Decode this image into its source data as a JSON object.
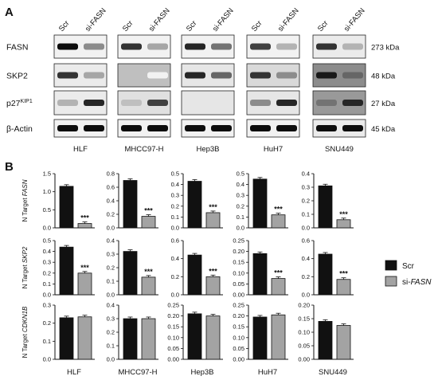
{
  "panel_a": {
    "letter": "A",
    "column_labels": [
      "Scr",
      "si-FASN"
    ],
    "proteins": [
      {
        "name": "FASN",
        "superscript": "",
        "kda": "273 kDa",
        "bands": [
          [
            0.95,
            0.45
          ],
          [
            0.8,
            0.35
          ],
          [
            0.85,
            0.55
          ],
          [
            0.75,
            0.3
          ],
          [
            0.8,
            0.3
          ]
        ],
        "bg": [
          0.05,
          0.05,
          0.05,
          0.05,
          0.08
        ]
      },
      {
        "name": "SKP2",
        "superscript": "",
        "kda": "48 kDa",
        "bands": [
          [
            0.8,
            0.35
          ],
          [
            0.25,
            0.05
          ],
          [
            0.85,
            0.6
          ],
          [
            0.8,
            0.45
          ],
          [
            0.9,
            0.6
          ]
        ],
        "bg": [
          0.08,
          0.25,
          0.1,
          0.15,
          0.45
        ]
      },
      {
        "name": "p27",
        "superscript": "KIP1",
        "kda": "27 kDa",
        "bands": [
          [
            0.3,
            0.85
          ],
          [
            0.25,
            0.75
          ],
          [
            0.1,
            0.1
          ],
          [
            0.45,
            0.85
          ],
          [
            0.55,
            0.85
          ]
        ],
        "bg": [
          0.08,
          0.12,
          0.1,
          0.1,
          0.4
        ]
      },
      {
        "name": "β-Actin",
        "superscript": "",
        "kda": "45 kDa",
        "bands": [
          [
            0.95,
            0.95
          ],
          [
            0.95,
            0.95
          ],
          [
            0.95,
            0.95
          ],
          [
            0.95,
            0.95
          ],
          [
            0.95,
            0.95
          ]
        ],
        "bg": [
          0.05,
          0.05,
          0.05,
          0.05,
          0.08
        ]
      }
    ]
  },
  "cell_lines": [
    "HLF",
    "MHCC97-H",
    "Hep3B",
    "HuH7",
    "SNU449"
  ],
  "panel_b": {
    "letter": "B",
    "significance": "***",
    "legend": [
      {
        "label": "Scr",
        "italic": "",
        "color": "#111111"
      },
      {
        "label": "si-",
        "italic": "FASN",
        "color": "#a3a3a3"
      }
    ]
  },
  "chart_data": {
    "type": "bar",
    "categories": [
      "Scr",
      "si-FASN"
    ],
    "rows": [
      {
        "ylabel_prefix": "N Target ",
        "ylabel_gene": "FASN",
        "charts": [
          {
            "cell_line": "HLF",
            "ylim": [
              0,
              1.5
            ],
            "ticks": [
              "0.0",
              "0.5",
              "1.0",
              "1.5"
            ],
            "tick_values": [
              0,
              0.5,
              1.0,
              1.5
            ],
            "values": [
              1.15,
              0.12
            ],
            "sig": [
              false,
              true
            ]
          },
          {
            "cell_line": "MHCC97-H",
            "ylim": [
              0,
              0.8
            ],
            "ticks": [
              "0.0",
              "0.2",
              "0.4",
              "0.6",
              "0.8"
            ],
            "tick_values": [
              0,
              0.2,
              0.4,
              0.6,
              0.8
            ],
            "values": [
              0.7,
              0.17
            ],
            "sig": [
              false,
              true
            ]
          },
          {
            "cell_line": "Hep3B",
            "ylim": [
              0,
              0.5
            ],
            "ticks": [
              "0.0",
              "0.1",
              "0.2",
              "0.3",
              "0.4",
              "0.5"
            ],
            "tick_values": [
              0,
              0.1,
              0.2,
              0.3,
              0.4,
              0.5
            ],
            "values": [
              0.43,
              0.14
            ],
            "sig": [
              false,
              true
            ]
          },
          {
            "cell_line": "HuH7",
            "ylim": [
              0,
              0.5
            ],
            "ticks": [
              "0.0",
              "0.1",
              "0.2",
              "0.3",
              "0.4",
              "0.5"
            ],
            "tick_values": [
              0,
              0.1,
              0.2,
              0.3,
              0.4,
              0.5
            ],
            "values": [
              0.45,
              0.12
            ],
            "sig": [
              false,
              true
            ]
          },
          {
            "cell_line": "SNU449",
            "ylim": [
              0,
              0.4
            ],
            "ticks": [
              "0.0",
              "0.1",
              "0.2",
              "0.3",
              "0.4"
            ],
            "tick_values": [
              0,
              0.1,
              0.2,
              0.3,
              0.4
            ],
            "values": [
              0.31,
              0.06
            ],
            "sig": [
              false,
              true
            ]
          }
        ]
      },
      {
        "ylabel_prefix": "N Target ",
        "ylabel_gene": "SKP2",
        "charts": [
          {
            "cell_line": "HLF",
            "ylim": [
              0,
              0.5
            ],
            "ticks": [
              "0.0",
              "0.1",
              "0.2",
              "0.3",
              "0.4",
              "0.5"
            ],
            "tick_values": [
              0,
              0.1,
              0.2,
              0.3,
              0.4,
              0.5
            ],
            "values": [
              0.44,
              0.2
            ],
            "sig": [
              false,
              true
            ]
          },
          {
            "cell_line": "MHCC97-H",
            "ylim": [
              0,
              0.4
            ],
            "ticks": [
              "0.0",
              "0.1",
              "0.2",
              "0.3",
              "0.4"
            ],
            "tick_values": [
              0,
              0.1,
              0.2,
              0.3,
              0.4
            ],
            "values": [
              0.32,
              0.13
            ],
            "sig": [
              false,
              true
            ]
          },
          {
            "cell_line": "Hep3B",
            "ylim": [
              0,
              0.6
            ],
            "ticks": [
              "0.0",
              "0.2",
              "0.4",
              "0.6"
            ],
            "tick_values": [
              0,
              0.2,
              0.4,
              0.6
            ],
            "values": [
              0.44,
              0.2
            ],
            "sig": [
              false,
              true
            ]
          },
          {
            "cell_line": "HuH7",
            "ylim": [
              0,
              0.25
            ],
            "ticks": [
              "0.00",
              "0.05",
              "0.10",
              "0.15",
              "0.20",
              "0.25"
            ],
            "tick_values": [
              0,
              0.05,
              0.1,
              0.15,
              0.2,
              0.25
            ],
            "values": [
              0.19,
              0.075
            ],
            "sig": [
              false,
              true
            ]
          },
          {
            "cell_line": "SNU449",
            "ylim": [
              0,
              0.6
            ],
            "ticks": [
              "0.0",
              "0.2",
              "0.4",
              "0.6"
            ],
            "tick_values": [
              0,
              0.2,
              0.4,
              0.6
            ],
            "values": [
              0.45,
              0.17
            ],
            "sig": [
              false,
              true
            ]
          }
        ]
      },
      {
        "ylabel_prefix": "N Target ",
        "ylabel_gene": "CDKN1B",
        "charts": [
          {
            "cell_line": "HLF",
            "ylim": [
              0,
              0.3
            ],
            "ticks": [
              "0.0",
              "0.1",
              "0.2",
              "0.3"
            ],
            "tick_values": [
              0,
              0.1,
              0.2,
              0.3
            ],
            "values": [
              0.23,
              0.235
            ],
            "sig": [
              false,
              false
            ]
          },
          {
            "cell_line": "MHCC97-H",
            "ylim": [
              0,
              0.4
            ],
            "ticks": [
              "0.0",
              "0.1",
              "0.2",
              "0.3",
              "0.4"
            ],
            "tick_values": [
              0,
              0.1,
              0.2,
              0.3,
              0.4
            ],
            "values": [
              0.3,
              0.3
            ],
            "sig": [
              false,
              false
            ]
          },
          {
            "cell_line": "Hep3B",
            "ylim": [
              0,
              0.25
            ],
            "ticks": [
              "0.00",
              "0.05",
              "0.10",
              "0.15",
              "0.20",
              "0.25"
            ],
            "tick_values": [
              0,
              0.05,
              0.1,
              0.15,
              0.2,
              0.25
            ],
            "values": [
              0.21,
              0.2
            ],
            "sig": [
              false,
              false
            ]
          },
          {
            "cell_line": "HuH7",
            "ylim": [
              0,
              0.25
            ],
            "ticks": [
              "0.00",
              "0.05",
              "0.10",
              "0.15",
              "0.20",
              "0.25"
            ],
            "tick_values": [
              0,
              0.05,
              0.1,
              0.15,
              0.2,
              0.25
            ],
            "values": [
              0.195,
              0.205
            ],
            "sig": [
              false,
              false
            ]
          },
          {
            "cell_line": "SNU449",
            "ylim": [
              0,
              0.2
            ],
            "ticks": [
              "0.00",
              "0.05",
              "0.10",
              "0.15",
              "0.20"
            ],
            "tick_values": [
              0,
              0.05,
              0.1,
              0.15,
              0.2
            ],
            "values": [
              0.14,
              0.125
            ],
            "sig": [
              false,
              false
            ]
          }
        ]
      }
    ]
  }
}
